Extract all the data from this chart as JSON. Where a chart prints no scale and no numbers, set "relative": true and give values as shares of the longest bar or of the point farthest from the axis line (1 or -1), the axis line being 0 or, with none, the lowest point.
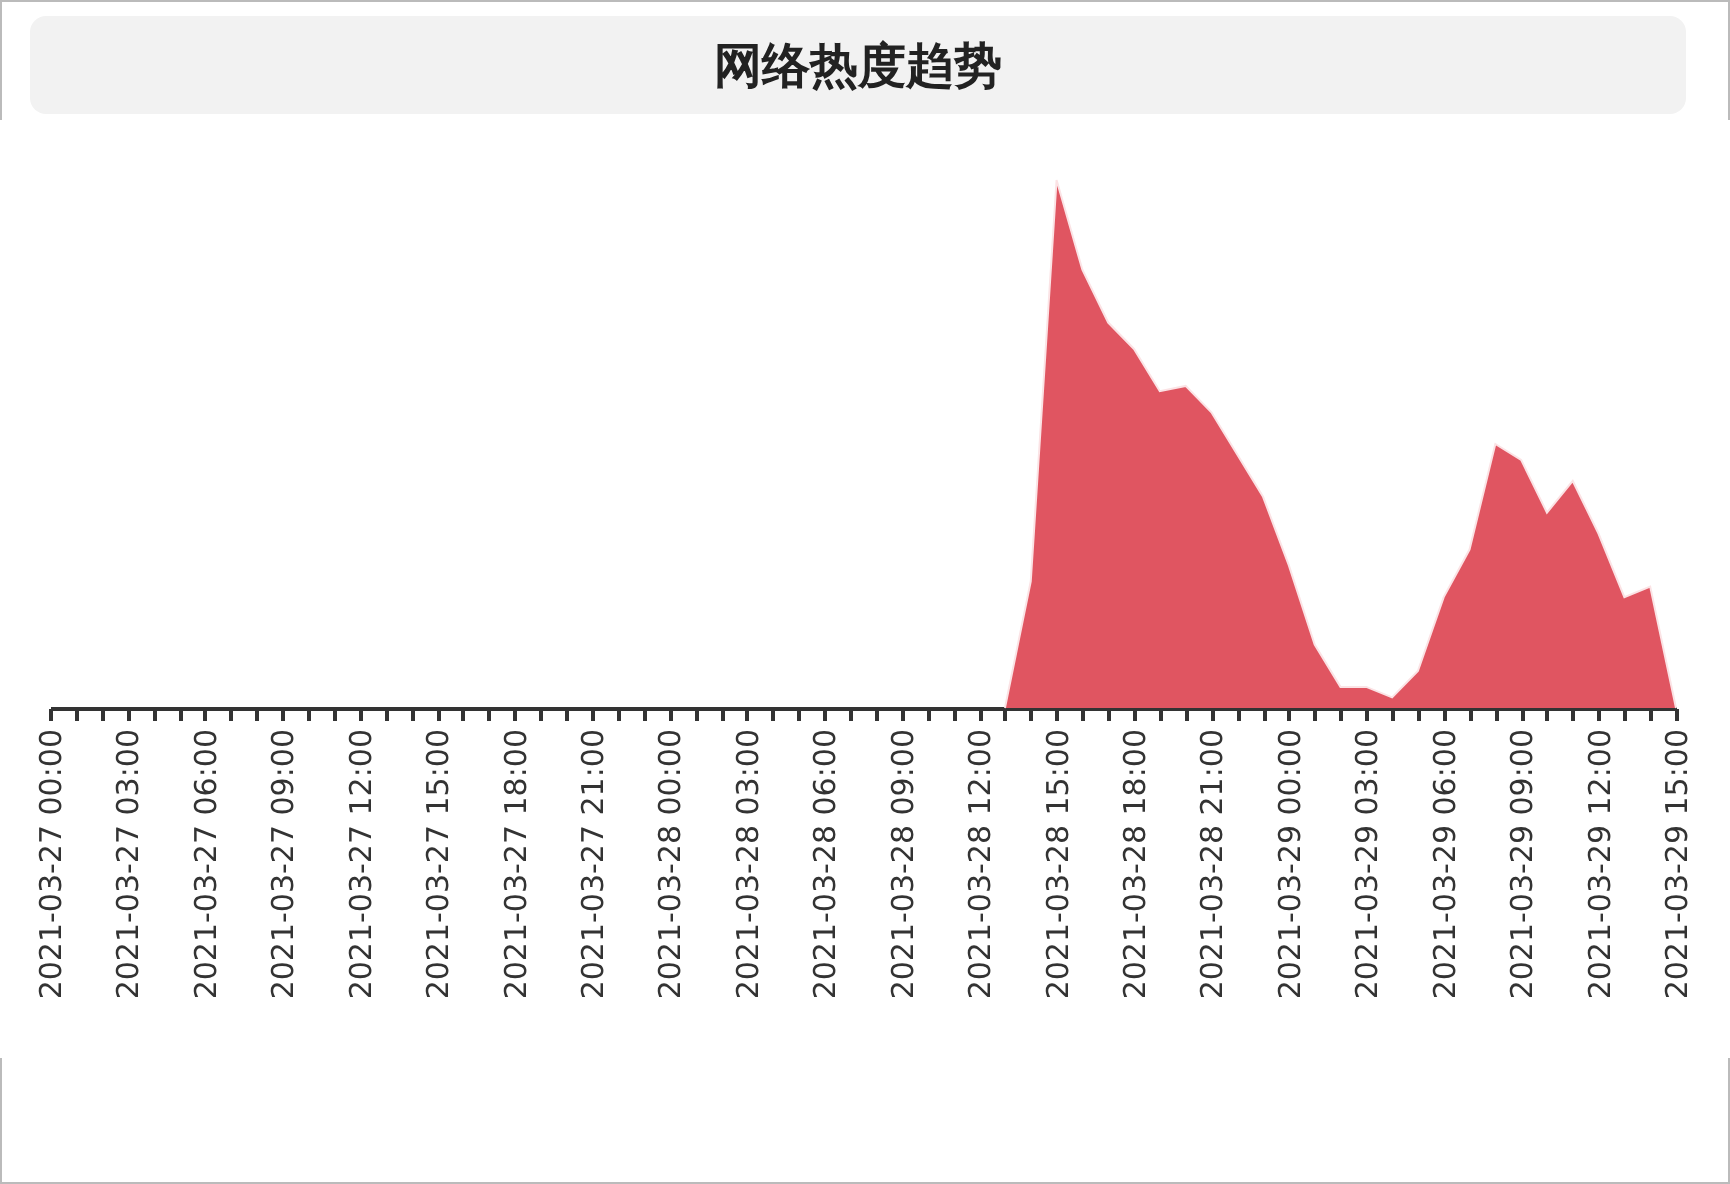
{
  "chart_data": {
    "type": "area",
    "title": "网络热度趋势",
    "relative": true,
    "color": "#e05561",
    "grid": false,
    "x": [
      "2021-03-28T13:00",
      "2021-03-28T14:00",
      "2021-03-28T15:00",
      "2021-03-28T16:00",
      "2021-03-28T17:00",
      "2021-03-28T18:00",
      "2021-03-28T19:00",
      "2021-03-28T20:00",
      "2021-03-28T21:00",
      "2021-03-28T22:00",
      "2021-03-28T23:00",
      "2021-03-29T00:00",
      "2021-03-29T01:00",
      "2021-03-29T02:00",
      "2021-03-29T03:00",
      "2021-03-29T04:00",
      "2021-03-29T05:00",
      "2021-03-29T06:00",
      "2021-03-29T07:00",
      "2021-03-29T08:00",
      "2021-03-29T09:00",
      "2021-03-29T10:00",
      "2021-03-29T11:00",
      "2021-03-29T12:00",
      "2021-03-29T13:00",
      "2021-03-29T14:00",
      "2021-03-29T15:00"
    ],
    "values": [
      0,
      0.24,
      1,
      0.83,
      0.73,
      0.68,
      0.6,
      0.61,
      0.56,
      0.48,
      0.4,
      0.27,
      0.12,
      0.04,
      0.04,
      0.02,
      0.07,
      0.21,
      0.3,
      0.5,
      0.47,
      0.37,
      0.43,
      0.33,
      0.21,
      0.23,
      0
    ],
    "xlim": [
      "2021-03-27T00:00",
      "2021-03-29T15:00"
    ],
    "xticks": [
      {
        "value": "2021-03-27T00:00",
        "label": "2021-03-27 00:00"
      },
      {
        "value": "2021-03-27T01:00",
        "label": null
      },
      {
        "value": "2021-03-27T02:00",
        "label": null
      },
      {
        "value": "2021-03-27T03:00",
        "label": "2021-03-27 03:00"
      },
      {
        "value": "2021-03-27T04:00",
        "label": null
      },
      {
        "value": "2021-03-27T05:00",
        "label": null
      },
      {
        "value": "2021-03-27T06:00",
        "label": "2021-03-27 06:00"
      },
      {
        "value": "2021-03-27T07:00",
        "label": null
      },
      {
        "value": "2021-03-27T08:00",
        "label": null
      },
      {
        "value": "2021-03-27T09:00",
        "label": "2021-03-27 09:00"
      },
      {
        "value": "2021-03-27T10:00",
        "label": null
      },
      {
        "value": "2021-03-27T11:00",
        "label": null
      },
      {
        "value": "2021-03-27T12:00",
        "label": "2021-03-27 12:00"
      },
      {
        "value": "2021-03-27T13:00",
        "label": null
      },
      {
        "value": "2021-03-27T14:00",
        "label": null
      },
      {
        "value": "2021-03-27T15:00",
        "label": "2021-03-27 15:00"
      },
      {
        "value": "2021-03-27T16:00",
        "label": null
      },
      {
        "value": "2021-03-27T17:00",
        "label": null
      },
      {
        "value": "2021-03-27T18:00",
        "label": "2021-03-27 18:00"
      },
      {
        "value": "2021-03-27T19:00",
        "label": null
      },
      {
        "value": "2021-03-27T20:00",
        "label": null
      },
      {
        "value": "2021-03-27T21:00",
        "label": "2021-03-27 21:00"
      },
      {
        "value": "2021-03-27T22:00",
        "label": null
      },
      {
        "value": "2021-03-27T23:00",
        "label": null
      },
      {
        "value": "2021-03-28T00:00",
        "label": "2021-03-28 00:00"
      },
      {
        "value": "2021-03-28T01:00",
        "label": null
      },
      {
        "value": "2021-03-28T02:00",
        "label": null
      },
      {
        "value": "2021-03-28T03:00",
        "label": "2021-03-28 03:00"
      },
      {
        "value": "2021-03-28T04:00",
        "label": null
      },
      {
        "value": "2021-03-28T05:00",
        "label": null
      },
      {
        "value": "2021-03-28T06:00",
        "label": "2021-03-28 06:00"
      },
      {
        "value": "2021-03-28T07:00",
        "label": null
      },
      {
        "value": "2021-03-28T08:00",
        "label": null
      },
      {
        "value": "2021-03-28T09:00",
        "label": "2021-03-28 09:00"
      },
      {
        "value": "2021-03-28T10:00",
        "label": null
      },
      {
        "value": "2021-03-28T11:00",
        "label": null
      },
      {
        "value": "2021-03-28T12:00",
        "label": "2021-03-28 12:00"
      },
      {
        "value": "2021-03-28T13:00",
        "label": null
      },
      {
        "value": "2021-03-28T14:00",
        "label": null
      },
      {
        "value": "2021-03-28T15:00",
        "label": "2021-03-28 15:00"
      },
      {
        "value": "2021-03-28T16:00",
        "label": null
      },
      {
        "value": "2021-03-28T17:00",
        "label": null
      },
      {
        "value": "2021-03-28T18:00",
        "label": "2021-03-28 18:00"
      },
      {
        "value": "2021-03-28T19:00",
        "label": null
      },
      {
        "value": "2021-03-28T20:00",
        "label": null
      },
      {
        "value": "2021-03-28T21:00",
        "label": "2021-03-28 21:00"
      },
      {
        "value": "2021-03-28T22:00",
        "label": null
      },
      {
        "value": "2021-03-28T23:00",
        "label": null
      },
      {
        "value": "2021-03-29T00:00",
        "label": "2021-03-29 00:00"
      },
      {
        "value": "2021-03-29T01:00",
        "label": null
      },
      {
        "value": "2021-03-29T02:00",
        "label": null
      },
      {
        "value": "2021-03-29T03:00",
        "label": "2021-03-29 03:00"
      },
      {
        "value": "2021-03-29T04:00",
        "label": null
      },
      {
        "value": "2021-03-29T05:00",
        "label": null
      },
      {
        "value": "2021-03-29T06:00",
        "label": "2021-03-29 06:00"
      },
      {
        "value": "2021-03-29T07:00",
        "label": null
      },
      {
        "value": "2021-03-29T08:00",
        "label": null
      },
      {
        "value": "2021-03-29T09:00",
        "label": "2021-03-29 09:00"
      },
      {
        "value": "2021-03-29T10:00",
        "label": null
      },
      {
        "value": "2021-03-29T11:00",
        "label": null
      },
      {
        "value": "2021-03-29T12:00",
        "label": "2021-03-29 12:00"
      },
      {
        "value": "2021-03-29T13:00",
        "label": null
      },
      {
        "value": "2021-03-29T14:00",
        "label": null
      },
      {
        "value": "2021-03-29T15:00",
        "label": "2021-03-29 15:00"
      }
    ]
  }
}
